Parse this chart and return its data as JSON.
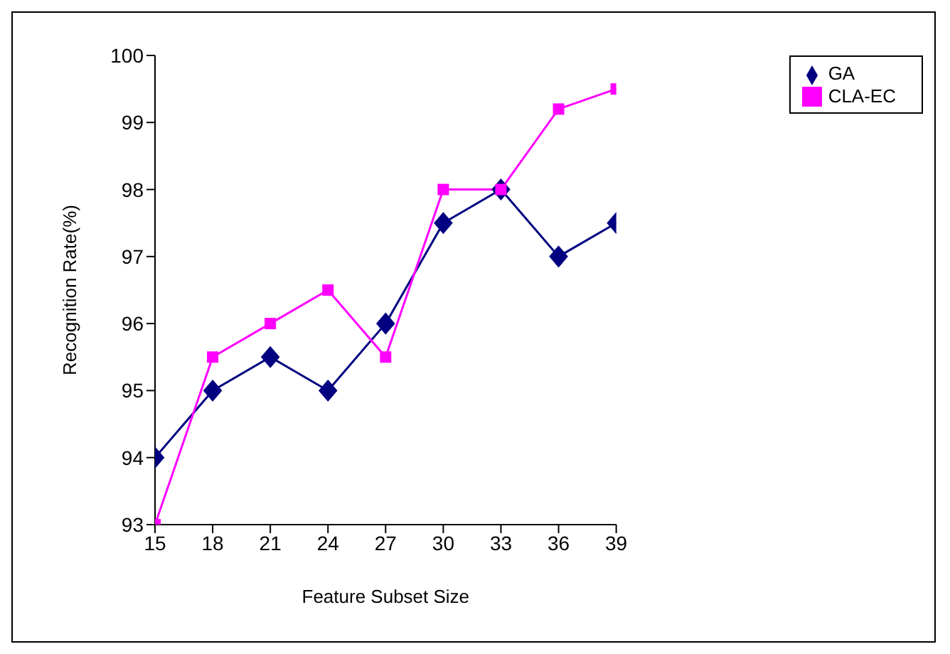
{
  "chart_data": {
    "type": "line",
    "xlabel": "Feature Subset Size",
    "ylabel": "Recognition Rate(%)",
    "x": [
      15,
      18,
      21,
      24,
      27,
      30,
      33,
      36,
      39
    ],
    "series": [
      {
        "name": "GA",
        "color": "#000080",
        "marker": "diamond",
        "values": [
          94,
          95,
          95.5,
          95,
          96,
          97.5,
          98,
          97,
          97.5
        ]
      },
      {
        "name": "CLA-EC",
        "color": "#ff00ff",
        "marker": "square",
        "values": [
          93,
          95.5,
          96,
          96.5,
          95.5,
          98,
          98,
          99.2,
          99.5
        ]
      }
    ],
    "xlim": [
      15,
      39
    ],
    "xticks": [
      15,
      18,
      21,
      24,
      27,
      30,
      33,
      36,
      39
    ],
    "ylim": [
      93,
      100
    ],
    "yticks": [
      93,
      94,
      95,
      96,
      97,
      98,
      99,
      100
    ],
    "grid": false,
    "legend": "top right",
    "line_style": "solid"
  }
}
